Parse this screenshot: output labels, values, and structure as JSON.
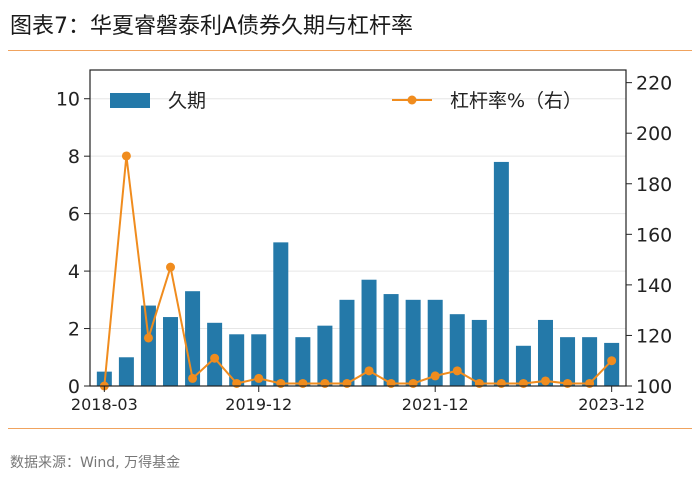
{
  "header": {
    "title": "图表7：华夏睿磐泰利A债券久期与杠杆率"
  },
  "footer": {
    "source": "数据来源：Wind, 万得基金"
  },
  "colors": {
    "bar": "#2479a9",
    "line": "#f08c1e",
    "rule": "#f0a35e",
    "grid": "#e6e6e6"
  },
  "chart_data": {
    "type": "bar",
    "categories": [
      "2018-03",
      "2018-06",
      "2018-09",
      "2018-12",
      "2019-03",
      "2019-06",
      "2019-09",
      "2019-12",
      "2020-03",
      "2020-06",
      "2020-09",
      "2020-12",
      "2021-03",
      "2021-06",
      "2021-09",
      "2021-12",
      "2022-03",
      "2022-06",
      "2022-09",
      "2022-12",
      "2023-03",
      "2023-06",
      "2023-09",
      "2023-12"
    ],
    "xticks": [
      "2018-03",
      "2019-12",
      "2021-12",
      "2023-12"
    ],
    "ylim_left": [
      0,
      11
    ],
    "yticks_left": [
      0,
      2,
      4,
      6,
      8,
      10
    ],
    "ylim_right": [
      100,
      225
    ],
    "yticks_right": [
      100,
      120,
      140,
      160,
      180,
      200,
      220
    ],
    "grid": true,
    "legend_position": "top",
    "series": [
      {
        "name": "久期",
        "type": "bar",
        "axis": "left",
        "values": [
          0.5,
          1.0,
          2.8,
          2.4,
          3.3,
          2.2,
          1.8,
          1.8,
          5.0,
          1.7,
          2.1,
          3.0,
          3.7,
          3.2,
          3.0,
          3.0,
          2.5,
          2.3,
          7.8,
          1.4,
          2.3,
          1.7,
          1.7,
          1.5
        ]
      },
      {
        "name": "杠杆率%（右）",
        "type": "line",
        "axis": "right",
        "values": [
          100,
          191,
          119,
          147,
          103,
          111,
          101,
          103,
          101,
          101,
          101,
          101,
          106,
          101,
          101,
          104,
          106,
          101,
          101,
          101,
          102,
          101,
          101,
          110
        ]
      }
    ]
  }
}
